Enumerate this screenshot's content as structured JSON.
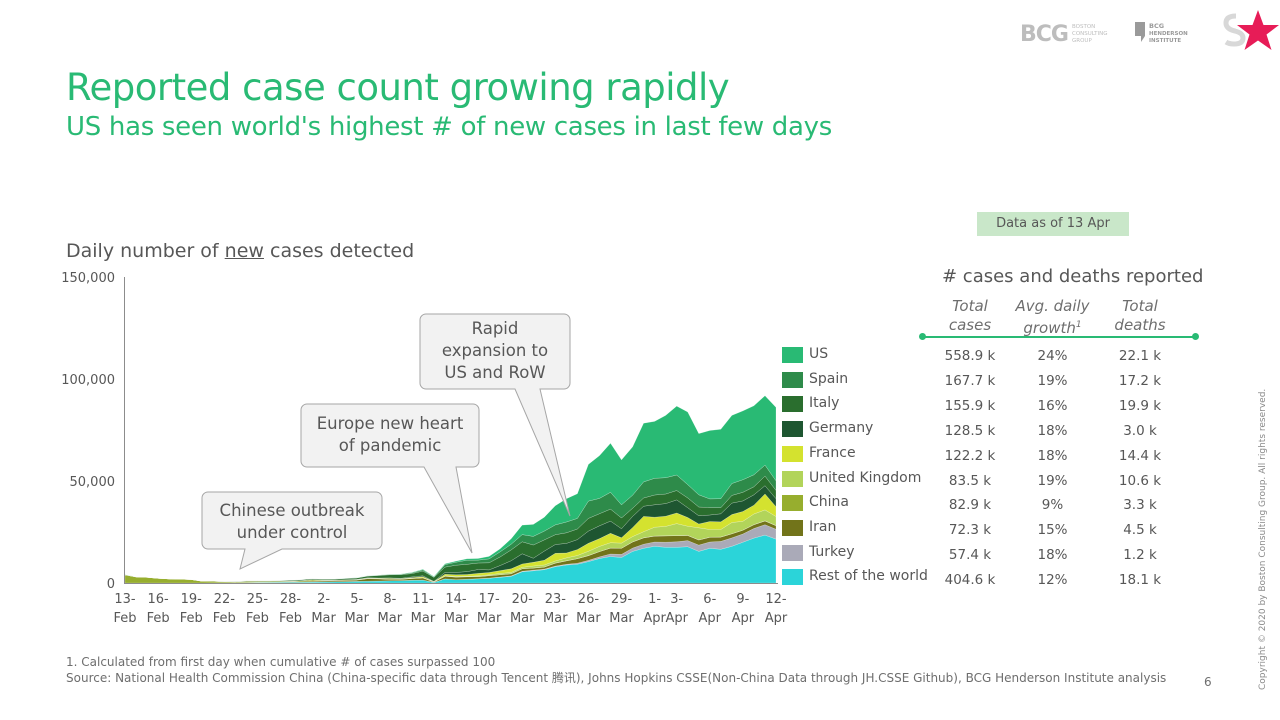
{
  "header": {
    "title": "Reported case count growing rapidly",
    "subtitle": "US has seen world's highest # of new cases in last few days",
    "logos": {
      "bcg": "BCG",
      "bcg_tagline": [
        "BOSTON",
        "CONSULTING",
        "GROUP"
      ],
      "bhi": [
        "BCG",
        "HENDERSON",
        "INSTITUTE"
      ]
    }
  },
  "chart_title": {
    "before": "Daily number of ",
    "underlined": "new",
    "after": " cases detected"
  },
  "callouts": [
    {
      "lines": [
        "Chinese outbreak",
        "under control"
      ]
    },
    {
      "lines": [
        "Europe new heart",
        "of pandemic"
      ]
    },
    {
      "lines": [
        "Rapid",
        "expansion to",
        "US and RoW"
      ]
    }
  ],
  "colors": {
    "US": "#29BA74",
    "Spain": "#2E8B4A",
    "Italy": "#2A6E2E",
    "Germany": "#1E5631",
    "France": "#D4E22F",
    "United Kingdom": "#B2D45A",
    "China": "#97AE2E",
    "Iran": "#72741A",
    "Turkey": "#AAAAB8",
    "Rest of the world": "#2BD4D9",
    "accent": "#29BA74",
    "badge": "#C9E7C9",
    "star": "#E71C57"
  },
  "chart_data": {
    "type": "area",
    "stacked": true,
    "title": "Daily number of new cases detected",
    "xlabel": "",
    "ylabel": "",
    "ylim": [
      0,
      150000
    ],
    "yticks": [
      0,
      50000,
      100000,
      150000
    ],
    "ytick_labels": [
      "0",
      "50,000",
      "100,000",
      "150,000"
    ],
    "xtick_labels": [
      [
        "13-",
        "Feb"
      ],
      [
        "16-",
        "Feb"
      ],
      [
        "19-",
        "Feb"
      ],
      [
        "22-",
        "Feb"
      ],
      [
        "25-",
        "Feb"
      ],
      [
        "28-",
        "Feb"
      ],
      [
        "2-",
        "Mar"
      ],
      [
        "5-",
        "Mar"
      ],
      [
        "8-",
        "Mar"
      ],
      [
        "11-",
        "Mar"
      ],
      [
        "14-",
        "Mar"
      ],
      [
        "17-",
        "Mar"
      ],
      [
        "20-",
        "Mar"
      ],
      [
        "23-",
        "Mar"
      ],
      [
        "26-",
        "Mar"
      ],
      [
        "29-",
        "Mar"
      ],
      [
        "1-",
        "Apr"
      ],
      [
        "3-",
        "Apr"
      ],
      [
        "6-",
        "Apr"
      ],
      [
        "9-",
        "Apr"
      ],
      [
        "12-",
        "Apr"
      ]
    ],
    "xtick_day_index": [
      0,
      3,
      6,
      9,
      12,
      15,
      18,
      21,
      24,
      27,
      30,
      33,
      36,
      39,
      42,
      45,
      48,
      50,
      53,
      56,
      59
    ],
    "x": [
      "13-Feb",
      "14-Feb",
      "15-Feb",
      "16-Feb",
      "17-Feb",
      "18-Feb",
      "19-Feb",
      "20-Feb",
      "21-Feb",
      "22-Feb",
      "23-Feb",
      "24-Feb",
      "25-Feb",
      "26-Feb",
      "27-Feb",
      "28-Feb",
      "29-Feb",
      "1-Mar",
      "2-Mar",
      "3-Mar",
      "4-Mar",
      "5-Mar",
      "6-Mar",
      "7-Mar",
      "8-Mar",
      "9-Mar",
      "10-Mar",
      "11-Mar",
      "12-Mar",
      "13-Mar",
      "14-Mar",
      "15-Mar",
      "16-Mar",
      "17-Mar",
      "18-Mar",
      "19-Mar",
      "20-Mar",
      "21-Mar",
      "22-Mar",
      "23-Mar",
      "24-Mar",
      "25-Mar",
      "26-Mar",
      "27-Mar",
      "28-Mar",
      "29-Mar",
      "30-Mar",
      "31-Mar",
      "1-Apr",
      "2-Apr",
      "3-Apr",
      "4-Apr",
      "5-Apr",
      "6-Apr",
      "7-Apr",
      "8-Apr",
      "9-Apr",
      "10-Apr",
      "11-Apr",
      "12-Apr"
    ],
    "legend_position": "right",
    "series": [
      {
        "name": "Rest of the world",
        "values": [
          0,
          0,
          0,
          0,
          0,
          0,
          0,
          0,
          50,
          100,
          150,
          200,
          250,
          300,
          350,
          400,
          450,
          500,
          550,
          600,
          700,
          800,
          900,
          1000,
          1100,
          1200,
          1300,
          1400,
          300,
          2000,
          1600,
          1800,
          2000,
          2300,
          2800,
          3300,
          5500,
          6000,
          6500,
          8000,
          8800,
          9200,
          10500,
          12000,
          13000,
          12500,
          15500,
          17000,
          18000,
          17500,
          17500,
          17800,
          15500,
          17000,
          16500,
          18000,
          20000,
          22000,
          23500,
          21500
        ]
      },
      {
        "name": "Turkey",
        "values": [
          0,
          0,
          0,
          0,
          0,
          0,
          0,
          0,
          0,
          0,
          0,
          0,
          0,
          0,
          0,
          0,
          0,
          0,
          0,
          0,
          0,
          0,
          0,
          0,
          0,
          0,
          0,
          0,
          0,
          0,
          0,
          50,
          100,
          100,
          150,
          200,
          250,
          300,
          300,
          300,
          350,
          500,
          600,
          800,
          1200,
          1500,
          1600,
          2000,
          2100,
          2500,
          2700,
          3000,
          3100,
          3100,
          3900,
          4100,
          4000,
          4700,
          5100,
          4800
        ]
      },
      {
        "name": "Iran",
        "values": [
          0,
          0,
          0,
          0,
          0,
          0,
          0,
          0,
          10,
          20,
          30,
          50,
          80,
          100,
          150,
          200,
          250,
          400,
          500,
          600,
          600,
          600,
          1200,
          1000,
          700,
          600,
          900,
          1100,
          200,
          1300,
          1300,
          1200,
          1000,
          1200,
          1100,
          1000,
          1200,
          1000,
          1000,
          1400,
          1700,
          2200,
          2300,
          2600,
          2900,
          3000,
          3000,
          3100,
          2900,
          3100,
          3000,
          2500,
          2500,
          2300,
          2100,
          2000,
          1900,
          1900,
          1800,
          1800
        ]
      },
      {
        "name": "China",
        "values": [
          4000,
          3000,
          2800,
          2300,
          2000,
          1900,
          1700,
          900,
          800,
          500,
          400,
          600,
          500,
          450,
          400,
          350,
          450,
          600,
          200,
          130,
          120,
          140,
          100,
          50,
          40,
          20,
          20,
          20,
          15,
          10,
          20,
          25,
          20,
          25,
          35,
          40,
          55,
          45,
          40,
          80,
          70,
          70,
          60,
          55,
          50,
          40,
          40,
          50,
          40,
          35,
          30,
          30,
          40,
          45,
          30,
          60,
          45,
          45,
          110,
          100
        ]
      },
      {
        "name": "United Kingdom",
        "values": [
          0,
          0,
          0,
          0,
          0,
          0,
          0,
          0,
          0,
          0,
          0,
          0,
          0,
          0,
          0,
          0,
          0,
          0,
          0,
          0,
          10,
          30,
          50,
          60,
          60,
          70,
          80,
          90,
          90,
          200,
          300,
          200,
          400,
          400,
          600,
          600,
          700,
          1000,
          1000,
          1000,
          1400,
          1500,
          2100,
          2500,
          2600,
          2500,
          2600,
          3000,
          4300,
          4600,
          5900,
          4500,
          5900,
          3800,
          3700,
          5500,
          4300,
          5200,
          5300,
          4400
        ]
      },
      {
        "name": "France",
        "values": [
          0,
          0,
          0,
          0,
          0,
          0,
          0,
          0,
          0,
          0,
          0,
          0,
          0,
          0,
          0,
          0,
          0,
          50,
          50,
          50,
          80,
          100,
          150,
          200,
          300,
          200,
          300,
          500,
          100,
          800,
          800,
          900,
          1200,
          1100,
          1400,
          1800,
          1600,
          1800,
          2300,
          3800,
          2400,
          2900,
          3900,
          3800,
          4600,
          2600,
          4400,
          7500,
          4900,
          5000,
          5200,
          4300,
          1900,
          3900,
          3700,
          3900,
          4800,
          4300,
          7800,
          4800
        ]
      },
      {
        "name": "Germany",
        "values": [
          0,
          0,
          0,
          0,
          0,
          0,
          0,
          0,
          0,
          0,
          0,
          0,
          0,
          0,
          0,
          0,
          10,
          20,
          50,
          30,
          100,
          100,
          200,
          150,
          300,
          200,
          400,
          400,
          100,
          900,
          1200,
          1400,
          1900,
          1300,
          2500,
          4000,
          5000,
          2000,
          4500,
          4300,
          4700,
          4900,
          6000,
          6300,
          6000,
          4500,
          5500,
          5000,
          6100,
          6200,
          6400,
          4800,
          4000,
          3200,
          4000,
          5600,
          5200,
          5100,
          4100,
          3900
        ]
      },
      {
        "name": "Italy",
        "values": [
          0,
          0,
          0,
          0,
          0,
          0,
          0,
          0,
          100,
          100,
          200,
          300,
          300,
          300,
          300,
          400,
          500,
          500,
          500,
          500,
          600,
          700,
          800,
          1200,
          1500,
          1800,
          1600,
          2300,
          2000,
          2600,
          3500,
          3600,
          3200,
          3500,
          4200,
          5300,
          5900,
          6500,
          5500,
          4800,
          5200,
          5200,
          6200,
          5900,
          5900,
          5200,
          4000,
          4000,
          4800,
          4700,
          4600,
          4800,
          4300,
          3600,
          3000,
          3800,
          4200,
          3900,
          4700,
          4100
        ]
      },
      {
        "name": "Spain",
        "values": [
          0,
          0,
          0,
          0,
          0,
          0,
          0,
          0,
          0,
          0,
          0,
          0,
          0,
          0,
          0,
          0,
          0,
          0,
          20,
          30,
          50,
          50,
          100,
          150,
          200,
          200,
          400,
          600,
          100,
          1200,
          1500,
          2000,
          1400,
          1900,
          2500,
          2800,
          3500,
          4200,
          4300,
          4800,
          5300,
          5200,
          8500,
          7500,
          8200,
          6500,
          6400,
          7900,
          8200,
          8000,
          7600,
          6500,
          6000,
          4300,
          4400,
          5800,
          6200,
          5900,
          5400,
          4700
        ]
      },
      {
        "name": "US",
        "values": [
          0,
          0,
          0,
          0,
          0,
          0,
          0,
          0,
          0,
          0,
          0,
          0,
          0,
          0,
          0,
          0,
          0,
          0,
          10,
          10,
          20,
          30,
          50,
          80,
          90,
          100,
          200,
          300,
          300,
          400,
          500,
          700,
          800,
          1200,
          1500,
          2700,
          4700,
          5900,
          6800,
          9400,
          11400,
          12100,
          18000,
          21000,
          24100,
          22000,
          23700,
          28800,
          27900,
          30500,
          33800,
          35600,
          30000,
          33500,
          34000,
          33400,
          33700,
          33800,
          34000,
          36000
        ]
      }
    ]
  },
  "table": {
    "badge": "Data as of 13 Apr",
    "title": "# cases and deaths reported",
    "columns": [
      {
        "line1": "Total",
        "line2": "cases"
      },
      {
        "line1": "Avg. daily",
        "line2": "growth",
        "sup": "1"
      },
      {
        "line1": "Total",
        "line2": "deaths"
      }
    ],
    "rows": [
      {
        "country": "US",
        "total_cases": "558.9 k",
        "growth": "24%",
        "deaths": "22.1 k"
      },
      {
        "country": "Spain",
        "total_cases": "167.7 k",
        "growth": "19%",
        "deaths": "17.2 k"
      },
      {
        "country": "Italy",
        "total_cases": "155.9 k",
        "growth": "16%",
        "deaths": "19.9 k"
      },
      {
        "country": "Germany",
        "total_cases": "128.5 k",
        "growth": "18%",
        "deaths": "3.0 k"
      },
      {
        "country": "France",
        "total_cases": "122.2 k",
        "growth": "18%",
        "deaths": "14.4 k"
      },
      {
        "country": "United Kingdom",
        "total_cases": "83.5 k",
        "growth": "19%",
        "deaths": "10.6 k"
      },
      {
        "country": "China",
        "total_cases": "82.9 k",
        "growth": "9%",
        "deaths": "3.3 k"
      },
      {
        "country": "Iran",
        "total_cases": "72.3 k",
        "growth": "15%",
        "deaths": "4.5 k"
      },
      {
        "country": "Turkey",
        "total_cases": "57.4 k",
        "growth": "18%",
        "deaths": "1.2 k"
      },
      {
        "country": "Rest of the world",
        "total_cases": "404.6 k",
        "growth": "12%",
        "deaths": "18.1 k"
      }
    ]
  },
  "footer": {
    "footnote": "1. Calculated from first day when cumulative # of cases surpassed 100",
    "source": "Source: National Health Commission China (China-specific data through Tencent 腾讯), Johns Hopkins CSSE(Non-China Data through JH.CSSE Github), BCG Henderson Institute analysis",
    "page_number": "6",
    "copyright": "Copyright © 2020 by Boston Consulting Group. All rights reserved."
  }
}
